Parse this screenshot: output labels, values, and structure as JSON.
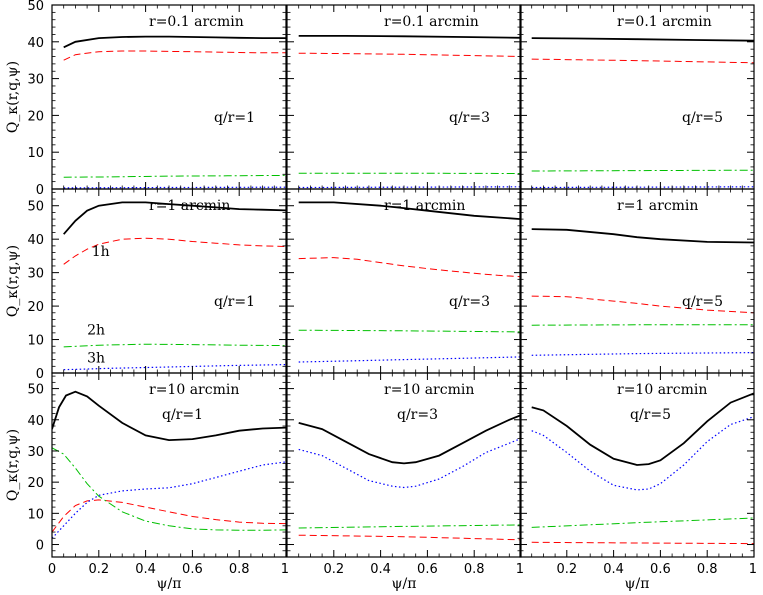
{
  "chart_data": {
    "type": "line",
    "layout": "3x3 grid",
    "xlabel": "ψ/π",
    "ylabel": "Q_κ(r,q,ψ)",
    "xlim": [
      0,
      1
    ],
    "xticks": [
      "0",
      "0.2",
      "0.4",
      "0.6",
      "0.8",
      "1"
    ],
    "colors": {
      "total": "#000000",
      "1h": "#ff0000",
      "2h": "#00c000",
      "3h": "#0000ff"
    },
    "series_styles": {
      "total": "solid",
      "1h": "dashed",
      "2h": "dash-dot",
      "3h": "dotted"
    },
    "rows": [
      {
        "title": "r=0.1 arcmin",
        "ylim": [
          0,
          50
        ],
        "yticks": [
          "0",
          "10",
          "20",
          "30",
          "40",
          "50"
        ],
        "panels": [
          {
            "label": "q/r=1",
            "series": [
              {
                "key": "total",
                "x": [
                  0.05,
                  0.1,
                  0.2,
                  0.3,
                  0.4,
                  0.5,
                  0.6,
                  0.7,
                  0.8,
                  0.9,
                  1.0
                ],
                "y": [
                  38.5,
                  40.0,
                  41.0,
                  41.3,
                  41.4,
                  41.4,
                  41.3,
                  41.2,
                  41.1,
                  41.0,
                  41.0
                ]
              },
              {
                "key": "1h",
                "x": [
                  0.05,
                  0.1,
                  0.2,
                  0.3,
                  0.4,
                  0.5,
                  0.6,
                  0.7,
                  0.8,
                  0.9,
                  1.0
                ],
                "y": [
                  35.0,
                  36.5,
                  37.3,
                  37.5,
                  37.5,
                  37.4,
                  37.3,
                  37.2,
                  37.1,
                  37.0,
                  37.0
                ]
              },
              {
                "key": "2h",
                "x": [
                  0.05,
                  0.25,
                  0.5,
                  0.75,
                  1.0
                ],
                "y": [
                  3.2,
                  3.3,
                  3.5,
                  3.6,
                  3.7
                ]
              },
              {
                "key": "3h",
                "x": [
                  0.05,
                  0.5,
                  1.0
                ],
                "y": [
                  0.3,
                  0.4,
                  0.5
                ]
              }
            ]
          },
          {
            "label": "q/r=3",
            "series": [
              {
                "key": "total",
                "x": [
                  0.05,
                  0.25,
                  0.5,
                  0.75,
                  1.0
                ],
                "y": [
                  41.6,
                  41.6,
                  41.5,
                  41.3,
                  41.1
                ]
              },
              {
                "key": "1h",
                "x": [
                  0.05,
                  0.25,
                  0.5,
                  0.75,
                  1.0
                ],
                "y": [
                  36.9,
                  36.8,
                  36.6,
                  36.3,
                  36.0
                ]
              },
              {
                "key": "2h",
                "x": [
                  0.05,
                  0.5,
                  1.0
                ],
                "y": [
                  4.3,
                  4.3,
                  4.2
                ]
              },
              {
                "key": "3h",
                "x": [
                  0.05,
                  0.5,
                  1.0
                ],
                "y": [
                  0.4,
                  0.5,
                  0.6
                ]
              }
            ]
          },
          {
            "label": "q/r=5",
            "series": [
              {
                "key": "total",
                "x": [
                  0.05,
                  0.25,
                  0.5,
                  0.75,
                  1.0
                ],
                "y": [
                  41.0,
                  40.9,
                  40.7,
                  40.5,
                  40.3
                ]
              },
              {
                "key": "1h",
                "x": [
                  0.05,
                  0.25,
                  0.5,
                  0.75,
                  1.0
                ],
                "y": [
                  35.3,
                  35.1,
                  34.9,
                  34.6,
                  34.3
                ]
              },
              {
                "key": "2h",
                "x": [
                  0.05,
                  0.5,
                  1.0
                ],
                "y": [
                  4.9,
                  5.0,
                  5.1
                ]
              },
              {
                "key": "3h",
                "x": [
                  0.05,
                  0.5,
                  1.0
                ],
                "y": [
                  0.4,
                  0.5,
                  0.6
                ]
              }
            ]
          }
        ]
      },
      {
        "title": "r=1 arcmin",
        "ylim": [
          0,
          55
        ],
        "yticks": [
          "0",
          "10",
          "20",
          "30",
          "40",
          "50"
        ],
        "panels": [
          {
            "label": "q/r=1",
            "annotations": [
              {
                "text": "1h",
                "x": 0.17,
                "y": 35
              },
              {
                "text": "2h",
                "x": 0.15,
                "y": 11.5
              },
              {
                "text": "3h",
                "x": 0.15,
                "y": 3.2
              }
            ],
            "series": [
              {
                "key": "total",
                "x": [
                  0.05,
                  0.1,
                  0.15,
                  0.2,
                  0.3,
                  0.4,
                  0.5,
                  0.6,
                  0.7,
                  0.8,
                  0.9,
                  1.0
                ],
                "y": [
                  41.5,
                  45.5,
                  48.5,
                  50.0,
                  51.0,
                  51.0,
                  50.5,
                  50.0,
                  49.5,
                  49.0,
                  48.8,
                  48.6
                ]
              },
              {
                "key": "1h",
                "x": [
                  0.05,
                  0.1,
                  0.15,
                  0.2,
                  0.3,
                  0.4,
                  0.5,
                  0.6,
                  0.7,
                  0.8,
                  0.9,
                  1.0
                ],
                "y": [
                  32.5,
                  35.0,
                  37.0,
                  38.5,
                  40.0,
                  40.3,
                  40.0,
                  39.3,
                  38.8,
                  38.3,
                  38.0,
                  37.8
                ]
              },
              {
                "key": "2h",
                "x": [
                  0.05,
                  0.2,
                  0.4,
                  0.6,
                  0.8,
                  1.0
                ],
                "y": [
                  7.8,
                  8.3,
                  8.6,
                  8.5,
                  8.3,
                  8.2
                ]
              },
              {
                "key": "3h",
                "x": [
                  0.05,
                  0.25,
                  0.5,
                  0.75,
                  1.0
                ],
                "y": [
                  1.0,
                  1.4,
                  1.8,
                  2.2,
                  2.5
                ]
              }
            ]
          },
          {
            "label": "q/r=3",
            "series": [
              {
                "key": "total",
                "x": [
                  0.05,
                  0.2,
                  0.4,
                  0.5,
                  0.6,
                  0.8,
                  1.0
                ],
                "y": [
                  51.0,
                  51.0,
                  50.0,
                  49.3,
                  48.5,
                  47.0,
                  46.0
                ]
              },
              {
                "key": "1h",
                "x": [
                  0.05,
                  0.2,
                  0.3,
                  0.4,
                  0.5,
                  0.6,
                  0.7,
                  0.8,
                  0.9,
                  1.0
                ],
                "y": [
                  34.2,
                  34.5,
                  34.0,
                  33.0,
                  32.0,
                  31.2,
                  30.5,
                  29.8,
                  29.2,
                  28.8
                ]
              },
              {
                "key": "2h",
                "x": [
                  0.05,
                  0.5,
                  1.0
                ],
                "y": [
                  12.8,
                  12.6,
                  12.3
                ]
              },
              {
                "key": "3h",
                "x": [
                  0.05,
                  0.25,
                  0.5,
                  0.75,
                  1.0
                ],
                "y": [
                  3.3,
                  3.6,
                  4.0,
                  4.4,
                  4.8
                ]
              }
            ]
          },
          {
            "label": "q/r=5",
            "series": [
              {
                "key": "total",
                "x": [
                  0.05,
                  0.2,
                  0.4,
                  0.5,
                  0.6,
                  0.8,
                  1.0
                ],
                "y": [
                  43.0,
                  42.8,
                  41.5,
                  40.6,
                  40.0,
                  39.2,
                  39.0
                ]
              },
              {
                "key": "1h",
                "x": [
                  0.05,
                  0.2,
                  0.4,
                  0.5,
                  0.6,
                  0.8,
                  1.0
                ],
                "y": [
                  23.0,
                  22.8,
                  21.5,
                  20.8,
                  20.0,
                  18.8,
                  18.0
                ]
              },
              {
                "key": "2h",
                "x": [
                  0.05,
                  0.5,
                  1.0
                ],
                "y": [
                  14.3,
                  14.4,
                  14.4
                ]
              },
              {
                "key": "3h",
                "x": [
                  0.05,
                  0.5,
                  1.0
                ],
                "y": [
                  5.3,
                  5.8,
                  6.1
                ]
              }
            ]
          }
        ]
      },
      {
        "title": "r=10 arcmin",
        "ylim": [
          -4,
          55
        ],
        "yticks": [
          "0",
          "10",
          "20",
          "30",
          "40",
          "50"
        ],
        "panels": [
          {
            "label": "q/r=1",
            "series": [
              {
                "key": "total",
                "x": [
                  0.0,
                  0.03,
                  0.06,
                  0.1,
                  0.15,
                  0.2,
                  0.3,
                  0.4,
                  0.5,
                  0.6,
                  0.7,
                  0.8,
                  0.9,
                  1.0
                ],
                "y": [
                  37.0,
                  44.0,
                  47.8,
                  49.0,
                  47.5,
                  44.5,
                  39.0,
                  35.0,
                  33.5,
                  33.8,
                  35.0,
                  36.5,
                  37.2,
                  37.5
                ]
              },
              {
                "key": "1h",
                "x": [
                  0.0,
                  0.05,
                  0.1,
                  0.15,
                  0.2,
                  0.3,
                  0.4,
                  0.5,
                  0.6,
                  0.7,
                  0.8,
                  0.9,
                  1.0
                ],
                "y": [
                  4.0,
                  9.0,
                  12.5,
                  14.0,
                  14.3,
                  13.5,
                  12.0,
                  10.5,
                  9.0,
                  8.0,
                  7.2,
                  6.8,
                  6.7
                ]
              },
              {
                "key": "2h",
                "x": [
                  0.0,
                  0.05,
                  0.1,
                  0.15,
                  0.2,
                  0.3,
                  0.4,
                  0.5,
                  0.6,
                  0.7,
                  0.8,
                  0.9,
                  1.0
                ],
                "y": [
                  31.0,
                  29.0,
                  24.5,
                  19.5,
                  15.5,
                  10.5,
                  7.5,
                  6.0,
                  5.0,
                  4.7,
                  4.6,
                  4.6,
                  4.7
                ]
              },
              {
                "key": "3h",
                "x": [
                  0.0,
                  0.05,
                  0.1,
                  0.15,
                  0.2,
                  0.3,
                  0.4,
                  0.5,
                  0.6,
                  0.7,
                  0.8,
                  0.9,
                  1.0
                ],
                "y": [
                  2.0,
                  6.0,
                  10.0,
                  13.5,
                  15.8,
                  17.2,
                  17.8,
                  18.2,
                  19.5,
                  21.5,
                  23.5,
                  25.5,
                  26.5
                ]
              }
            ]
          },
          {
            "label": "q/r=3",
            "series": [
              {
                "key": "total",
                "x": [
                  0.05,
                  0.15,
                  0.25,
                  0.35,
                  0.45,
                  0.5,
                  0.55,
                  0.65,
                  0.75,
                  0.85,
                  0.95,
                  1.0
                ],
                "y": [
                  39.0,
                  37.0,
                  33.0,
                  29.0,
                  26.4,
                  26.0,
                  26.4,
                  28.5,
                  32.5,
                  36.5,
                  40.0,
                  41.5
                ]
              },
              {
                "key": "1h",
                "x": [
                  0.05,
                  0.5,
                  1.0
                ],
                "y": [
                  3.0,
                  2.5,
                  1.5
                ]
              },
              {
                "key": "2h",
                "x": [
                  0.05,
                  0.5,
                  1.0
                ],
                "y": [
                  5.3,
                  5.8,
                  6.3
                ]
              },
              {
                "key": "3h",
                "x": [
                  0.05,
                  0.15,
                  0.25,
                  0.35,
                  0.45,
                  0.5,
                  0.55,
                  0.65,
                  0.75,
                  0.85,
                  0.95,
                  1.0
                ],
                "y": [
                  30.5,
                  28.5,
                  24.5,
                  20.5,
                  18.7,
                  18.3,
                  18.7,
                  21.0,
                  25.0,
                  29.5,
                  32.5,
                  34.0
                ]
              }
            ]
          },
          {
            "label": "q/r=5",
            "series": [
              {
                "key": "total",
                "x": [
                  0.05,
                  0.1,
                  0.2,
                  0.3,
                  0.4,
                  0.5,
                  0.55,
                  0.6,
                  0.7,
                  0.8,
                  0.9,
                  1.0
                ],
                "y": [
                  44.0,
                  43.0,
                  38.0,
                  32.0,
                  27.5,
                  25.5,
                  25.8,
                  27.0,
                  32.5,
                  39.5,
                  45.5,
                  48.5
                ]
              },
              {
                "key": "1h",
                "x": [
                  0.05,
                  0.5,
                  1.0
                ],
                "y": [
                  0.7,
                  0.5,
                  0.3
                ]
              },
              {
                "key": "2h",
                "x": [
                  0.05,
                  0.5,
                  1.0
                ],
                "y": [
                  5.5,
                  7.0,
                  8.5
                ]
              },
              {
                "key": "3h",
                "x": [
                  0.05,
                  0.1,
                  0.2,
                  0.3,
                  0.4,
                  0.5,
                  0.55,
                  0.6,
                  0.7,
                  0.8,
                  0.9,
                  1.0
                ],
                "y": [
                  36.5,
                  35.0,
                  29.5,
                  23.5,
                  19.0,
                  17.5,
                  17.8,
                  19.5,
                  25.5,
                  33.0,
                  38.5,
                  41.0
                ]
              }
            ]
          }
        ]
      }
    ]
  }
}
